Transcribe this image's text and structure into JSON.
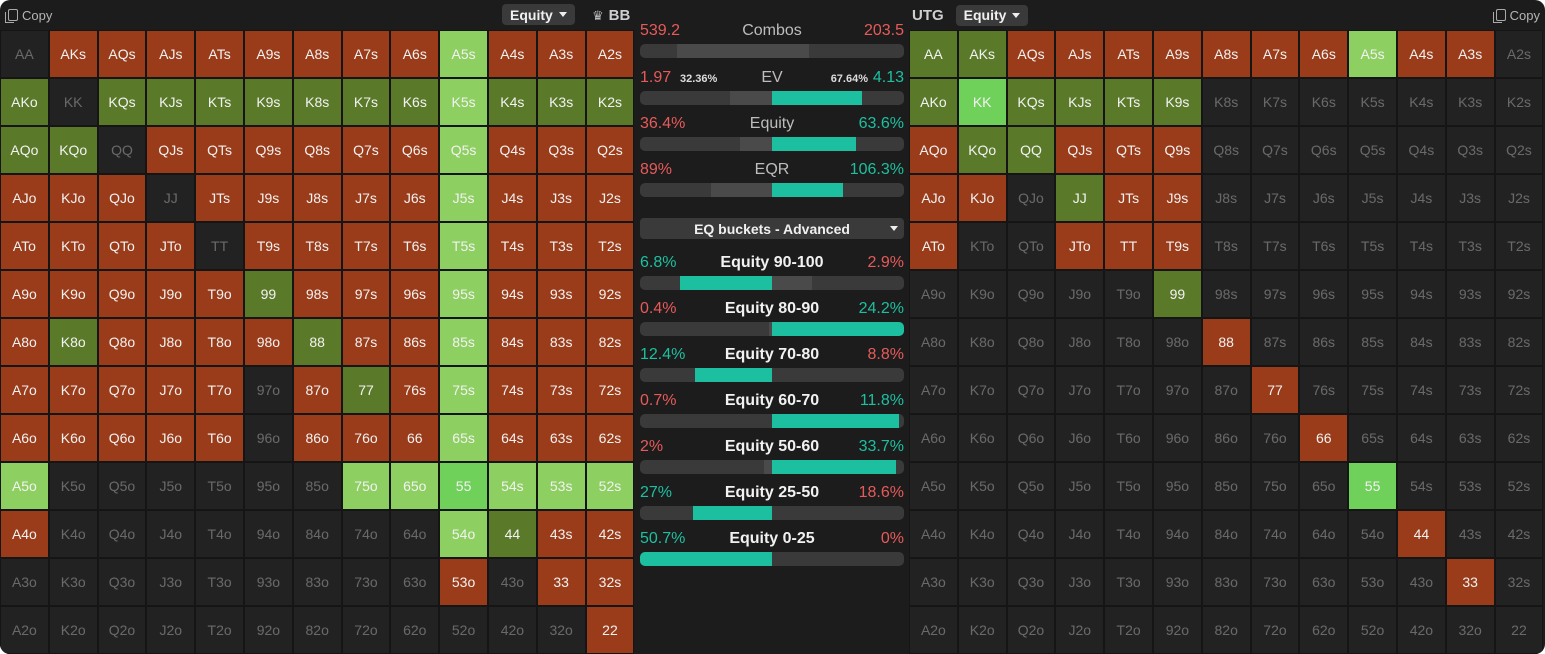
{
  "left_panel": {
    "copy_label": "Copy",
    "dropdown": "Equity",
    "position": "BB"
  },
  "right_panel": {
    "copy_label": "Copy",
    "dropdown": "Equity",
    "position": "UTG"
  },
  "colors": {
    "high": "#6fd05a",
    "mid": "#5a7a2a",
    "low": "#9a3c1a",
    "teal": "#1cc0a0",
    "red": "#e85a5a",
    "bar_bg": "#3a3a3a"
  },
  "stats": [
    {
      "label": "Combos",
      "left": "539.2",
      "right": "203.5",
      "left_color": "red",
      "right_color": "red",
      "bar": [
        0.14,
        0.51,
        0.64
      ]
    },
    {
      "label": "EV",
      "left": "1.97",
      "left_pct": "32.36%",
      "right": "4.13",
      "right_pct": "67.64%",
      "left_color": "red",
      "right_color": "teal",
      "bar": [
        0.34,
        0.5,
        0.84
      ]
    },
    {
      "label": "Equity",
      "left": "36.4%",
      "right": "63.6%",
      "left_color": "red",
      "right_color": "teal",
      "bar": [
        0.38,
        0.5,
        0.82
      ]
    },
    {
      "label": "EQR",
      "left": "89%",
      "right": "106.3%",
      "left_color": "red",
      "right_color": "teal",
      "bar": [
        0.27,
        0.5,
        0.77
      ]
    }
  ],
  "eq_selector": "EQ buckets - Advanced",
  "buckets": [
    {
      "label": "Equity 90-100",
      "left": "6.8%",
      "right": "2.9%",
      "left_color": "teal",
      "right_color": "red",
      "bar": [
        0.15,
        0.5,
        0.65
      ]
    },
    {
      "label": "Equity 80-90",
      "left": "0.4%",
      "right": "24.2%",
      "left_color": "red",
      "right_color": "teal",
      "bar": [
        0.49,
        0.5,
        1.0
      ]
    },
    {
      "label": "Equity 70-80",
      "left": "12.4%",
      "right": "8.8%",
      "left_color": "teal",
      "right_color": "red",
      "bar": [
        0.21,
        0.5,
        0.5
      ]
    },
    {
      "label": "Equity 60-70",
      "left": "0.7%",
      "right": "11.8%",
      "left_color": "red",
      "right_color": "teal",
      "bar": [
        0.5,
        0.5,
        0.98
      ]
    },
    {
      "label": "Equity 50-60",
      "left": "2%",
      "right": "33.7%",
      "left_color": "red",
      "right_color": "teal",
      "bar": [
        0.47,
        0.5,
        0.97
      ]
    },
    {
      "label": "Equity 25-50",
      "left": "27%",
      "right": "18.6%",
      "left_color": "teal",
      "right_color": "red",
      "bar": [
        0.2,
        0.5,
        0.5
      ]
    },
    {
      "label": "Equity 0-25",
      "left": "50.7%",
      "right": "0%",
      "left_color": "teal",
      "right_color": "red",
      "bar": [
        0.0,
        0.5,
        0.5
      ]
    }
  ],
  "hands": [
    [
      "AA",
      "AKs",
      "AQs",
      "AJs",
      "ATs",
      "A9s",
      "A8s",
      "A7s",
      "A6s",
      "A5s",
      "A4s",
      "A3s",
      "A2s"
    ],
    [
      "AKo",
      "KK",
      "KQs",
      "KJs",
      "KTs",
      "K9s",
      "K8s",
      "K7s",
      "K6s",
      "K5s",
      "K4s",
      "K3s",
      "K2s"
    ],
    [
      "AQo",
      "KQo",
      "QQ",
      "QJs",
      "QTs",
      "Q9s",
      "Q8s",
      "Q7s",
      "Q6s",
      "Q5s",
      "Q4s",
      "Q3s",
      "Q2s"
    ],
    [
      "AJo",
      "KJo",
      "QJo",
      "JJ",
      "JTs",
      "J9s",
      "J8s",
      "J7s",
      "J6s",
      "J5s",
      "J4s",
      "J3s",
      "J2s"
    ],
    [
      "ATo",
      "KTo",
      "QTo",
      "JTo",
      "TT",
      "T9s",
      "T8s",
      "T7s",
      "T6s",
      "T5s",
      "T4s",
      "T3s",
      "T2s"
    ],
    [
      "A9o",
      "K9o",
      "Q9o",
      "J9o",
      "T9o",
      "99",
      "98s",
      "97s",
      "96s",
      "95s",
      "94s",
      "93s",
      "92s"
    ],
    [
      "A8o",
      "K8o",
      "Q8o",
      "J8o",
      "T8o",
      "98o",
      "88",
      "87s",
      "86s",
      "85s",
      "84s",
      "83s",
      "82s"
    ],
    [
      "A7o",
      "K7o",
      "Q7o",
      "J7o",
      "T7o",
      "97o",
      "87o",
      "77",
      "76s",
      "75s",
      "74s",
      "73s",
      "72s"
    ],
    [
      "A6o",
      "K6o",
      "Q6o",
      "J6o",
      "T6o",
      "96o",
      "86o",
      "76o",
      "66",
      "65s",
      "64s",
      "63s",
      "62s"
    ],
    [
      "A5o",
      "K5o",
      "Q5o",
      "J5o",
      "T5o",
      "95o",
      "85o",
      "75o",
      "65o",
      "55",
      "54s",
      "53s",
      "52s"
    ],
    [
      "A4o",
      "K4o",
      "Q4o",
      "J4o",
      "T4o",
      "94o",
      "84o",
      "74o",
      "64o",
      "54o",
      "44",
      "43s",
      "42s"
    ],
    [
      "A3o",
      "K3o",
      "Q3o",
      "J3o",
      "T3o",
      "93o",
      "83o",
      "73o",
      "63o",
      "53o",
      "43o",
      "33",
      "32s"
    ],
    [
      "A2o",
      "K2o",
      "Q2o",
      "J2o",
      "T2o",
      "92o",
      "82o",
      "72o",
      "62o",
      "52o",
      "42o",
      "32o",
      "22"
    ]
  ],
  "bb_cells": [
    "g0000000000a0000",
    "rrrrrrrrrG0rrr",
    "mrmmmmmmmrGmmm"
  ],
  "bb_grid": [
    "_rrrrrrrrGrrr",
    "m_mmmmmmmGmmm",
    "mm_rrrrrrGrrr",
    "rrr_rrrrrGrrr",
    "rrrr_rrrrGrrr",
    "rrrrrmrrrGrrr",
    "rmrrrrmrrGrrr",
    "rrrrr_rmrGrrr",
    "rrrrr_rrrGrrr",
    "G______GGHGGG",
    "r________Gmrr",
    "_________r_rr",
    "____________r"
  ],
  "utg_grid": [
    "mmrrrrrrrGrr_",
    "mHmmmm_______",
    "rmmrrr_______",
    "rr_mrr_______",
    "r__rrr_______",
    "_____m_______",
    "______r______",
    "_______r_____",
    "________r____",
    "_________H___",
    "__________r__",
    "___________r_",
    "_____________"
  ]
}
